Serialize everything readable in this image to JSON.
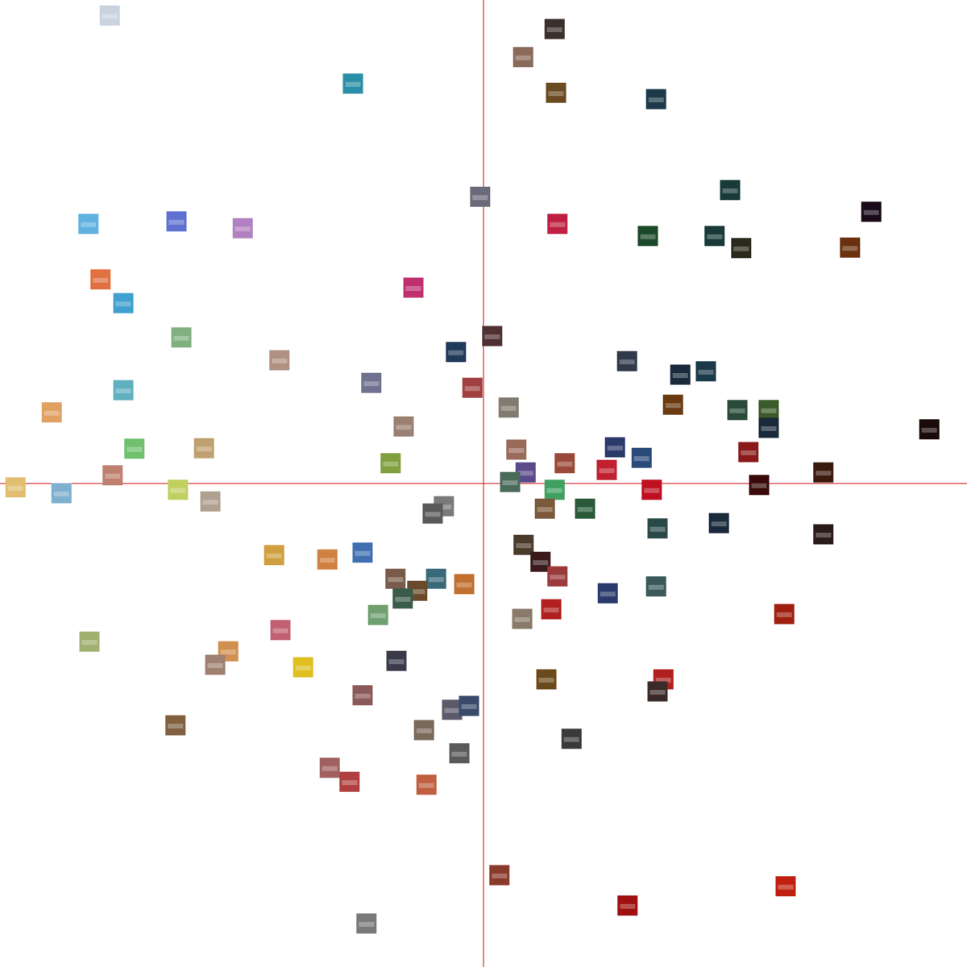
{
  "chart_data": {
    "type": "scatter",
    "title": "",
    "xlabel": "",
    "ylabel": "",
    "xlim": [
      -1,
      1
    ],
    "ylim": [
      -1,
      1
    ],
    "grid": false,
    "axis_color": "#cc0000",
    "marker": "image-thumbnail",
    "points": [
      {
        "x": -0.773,
        "y": 0.968,
        "color": "#c9d3e0"
      },
      {
        "x": 0.147,
        "y": 0.94,
        "color": "#3a2f2a"
      },
      {
        "x": -0.27,
        "y": 0.827,
        "color": "#2a8fa6"
      },
      {
        "x": 0.082,
        "y": 0.882,
        "color": "#8a6a5a"
      },
      {
        "x": 0.15,
        "y": 0.808,
        "color": "#6a4a20"
      },
      {
        "x": 0.357,
        "y": 0.795,
        "color": "#1e3a4a"
      },
      {
        "x": -0.007,
        "y": 0.593,
        "color": "#6a6a7a"
      },
      {
        "x": 0.51,
        "y": 0.607,
        "color": "#1a3a3a"
      },
      {
        "x": 0.802,
        "y": 0.562,
        "color": "#1a0a1a"
      },
      {
        "x": 0.153,
        "y": 0.537,
        "color": "#c02040"
      },
      {
        "x": 0.34,
        "y": 0.512,
        "color": "#1a4a2a"
      },
      {
        "x": 0.478,
        "y": 0.512,
        "color": "#1a3a3a"
      },
      {
        "x": 0.533,
        "y": 0.487,
        "color": "#2a2a1a"
      },
      {
        "x": 0.758,
        "y": 0.488,
        "color": "#6a3010"
      },
      {
        "x": -0.817,
        "y": 0.537,
        "color": "#60b0e0"
      },
      {
        "x": -0.635,
        "y": 0.542,
        "color": "#6070d0"
      },
      {
        "x": -0.498,
        "y": 0.528,
        "color": "#b080c0"
      },
      {
        "x": -0.792,
        "y": 0.422,
        "color": "#e07040"
      },
      {
        "x": -0.745,
        "y": 0.373,
        "color": "#40a0d0"
      },
      {
        "x": -0.145,
        "y": 0.405,
        "color": "#c03070"
      },
      {
        "x": -0.625,
        "y": 0.302,
        "color": "#80b080"
      },
      {
        "x": -0.422,
        "y": 0.255,
        "color": "#b09080"
      },
      {
        "x": -0.232,
        "y": 0.208,
        "color": "#707090"
      },
      {
        "x": -0.057,
        "y": 0.272,
        "color": "#203a5a"
      },
      {
        "x": 0.018,
        "y": 0.305,
        "color": "#503030"
      },
      {
        "x": 0.297,
        "y": 0.253,
        "color": "#303a4a"
      },
      {
        "x": 0.407,
        "y": 0.225,
        "color": "#1a2a3a"
      },
      {
        "x": 0.46,
        "y": 0.232,
        "color": "#1a3a4a"
      },
      {
        "x": -0.745,
        "y": 0.193,
        "color": "#60b0c0"
      },
      {
        "x": -0.023,
        "y": 0.198,
        "color": "#a04040"
      },
      {
        "x": -0.893,
        "y": 0.147,
        "color": "#e0a060"
      },
      {
        "x": 0.052,
        "y": 0.157,
        "color": "#807a70"
      },
      {
        "x": 0.392,
        "y": 0.163,
        "color": "#6a3a10"
      },
      {
        "x": 0.525,
        "y": 0.152,
        "color": "#2a4a3a"
      },
      {
        "x": 0.59,
        "y": 0.152,
        "color": "#3a5a2a"
      },
      {
        "x": 0.59,
        "y": 0.115,
        "color": "#1a2a3a"
      },
      {
        "x": 0.922,
        "y": 0.112,
        "color": "#1a0a0a"
      },
      {
        "x": -0.165,
        "y": 0.118,
        "color": "#9a8070"
      },
      {
        "x": -0.722,
        "y": 0.072,
        "color": "#70c070"
      },
      {
        "x": -0.578,
        "y": 0.073,
        "color": "#c0a070"
      },
      {
        "x": 0.068,
        "y": 0.07,
        "color": "#9a6a5a"
      },
      {
        "x": 0.272,
        "y": 0.075,
        "color": "#2a3a6a"
      },
      {
        "x": 0.327,
        "y": 0.053,
        "color": "#2a4a7a"
      },
      {
        "x": 0.548,
        "y": 0.065,
        "color": "#8a1a1a"
      },
      {
        "x": -0.192,
        "y": 0.042,
        "color": "#80a040"
      },
      {
        "x": 0.168,
        "y": 0.042,
        "color": "#9a4a3a"
      },
      {
        "x": 0.255,
        "y": 0.028,
        "color": "#c02030"
      },
      {
        "x": 0.703,
        "y": 0.023,
        "color": "#3a1a0a"
      },
      {
        "x": -0.767,
        "y": 0.017,
        "color": "#c08070"
      },
      {
        "x": 0.087,
        "y": 0.023,
        "color": "#5a4a8a"
      },
      {
        "x": 0.055,
        "y": 0.003,
        "color": "#4a6a5a"
      },
      {
        "x": -0.968,
        "y": -0.008,
        "color": "#e0c070"
      },
      {
        "x": -0.873,
        "y": -0.02,
        "color": "#80b0d0"
      },
      {
        "x": -0.632,
        "y": -0.013,
        "color": "#c0d060"
      },
      {
        "x": -0.565,
        "y": -0.037,
        "color": "#b0a090"
      },
      {
        "x": 0.147,
        "y": -0.013,
        "color": "#40a060"
      },
      {
        "x": 0.348,
        "y": -0.013,
        "color": "#c01020"
      },
      {
        "x": 0.57,
        "y": -0.003,
        "color": "#3a0a0a"
      },
      {
        "x": -0.082,
        "y": -0.047,
        "color": "#7a7a7a"
      },
      {
        "x": -0.105,
        "y": -0.062,
        "color": "#5a5a5a"
      },
      {
        "x": 0.127,
        "y": -0.052,
        "color": "#7a5a3a"
      },
      {
        "x": 0.21,
        "y": -0.052,
        "color": "#2a5a3a"
      },
      {
        "x": 0.36,
        "y": -0.093,
        "color": "#2a4a4a"
      },
      {
        "x": 0.487,
        "y": -0.082,
        "color": "#1a2a3a"
      },
      {
        "x": 0.703,
        "y": -0.105,
        "color": "#2a1a1a"
      },
      {
        "x": -0.433,
        "y": -0.148,
        "color": "#d0a040"
      },
      {
        "x": -0.323,
        "y": -0.157,
        "color": "#d08040"
      },
      {
        "x": -0.25,
        "y": -0.143,
        "color": "#4070b0"
      },
      {
        "x": 0.083,
        "y": -0.127,
        "color": "#4a3a2a"
      },
      {
        "x": 0.118,
        "y": -0.162,
        "color": "#3a1a1a"
      },
      {
        "x": 0.153,
        "y": -0.192,
        "color": "#9a3a3a"
      },
      {
        "x": -0.182,
        "y": -0.197,
        "color": "#7a5a4a"
      },
      {
        "x": -0.098,
        "y": -0.197,
        "color": "#3a6a7a"
      },
      {
        "x": -0.137,
        "y": -0.222,
        "color": "#6a4a2a"
      },
      {
        "x": -0.04,
        "y": -0.208,
        "color": "#c07030"
      },
      {
        "x": 0.257,
        "y": -0.227,
        "color": "#2a3a6a"
      },
      {
        "x": 0.357,
        "y": -0.213,
        "color": "#3a5a5a"
      },
      {
        "x": -0.167,
        "y": -0.238,
        "color": "#3a5a4a"
      },
      {
        "x": -0.218,
        "y": -0.272,
        "color": "#70a070"
      },
      {
        "x": 0.14,
        "y": -0.26,
        "color": "#b02020"
      },
      {
        "x": 0.08,
        "y": -0.28,
        "color": "#8a7a6a"
      },
      {
        "x": 0.622,
        "y": -0.27,
        "color": "#a02010"
      },
      {
        "x": -0.42,
        "y": -0.303,
        "color": "#c06070"
      },
      {
        "x": -0.815,
        "y": -0.327,
        "color": "#a0b070"
      },
      {
        "x": -0.528,
        "y": -0.347,
        "color": "#d09050"
      },
      {
        "x": -0.555,
        "y": -0.375,
        "color": "#a08070"
      },
      {
        "x": -0.373,
        "y": -0.38,
        "color": "#e0c020"
      },
      {
        "x": -0.18,
        "y": -0.367,
        "color": "#3a3a4a"
      },
      {
        "x": 0.13,
        "y": -0.405,
        "color": "#6a4a1a"
      },
      {
        "x": 0.372,
        "y": -0.405,
        "color": "#b02020"
      },
      {
        "x": 0.36,
        "y": -0.43,
        "color": "#3a2a2a"
      },
      {
        "x": -0.25,
        "y": -0.438,
        "color": "#8a5a5a"
      },
      {
        "x": -0.065,
        "y": -0.468,
        "color": "#5a5a6a"
      },
      {
        "x": -0.03,
        "y": -0.46,
        "color": "#3a4a6a"
      },
      {
        "x": -0.637,
        "y": -0.5,
        "color": "#806040"
      },
      {
        "x": -0.123,
        "y": -0.51,
        "color": "#7a6a5a"
      },
      {
        "x": 0.182,
        "y": -0.528,
        "color": "#3a3a3a"
      },
      {
        "x": -0.05,
        "y": -0.558,
        "color": "#5a5a5a"
      },
      {
        "x": -0.318,
        "y": -0.588,
        "color": "#a06060"
      },
      {
        "x": -0.277,
        "y": -0.617,
        "color": "#b04040"
      },
      {
        "x": -0.118,
        "y": -0.623,
        "color": "#c06040"
      },
      {
        "x": 0.033,
        "y": -0.81,
        "color": "#8a3a2a"
      },
      {
        "x": 0.625,
        "y": -0.833,
        "color": "#c02010"
      },
      {
        "x": 0.298,
        "y": -0.873,
        "color": "#a01010"
      },
      {
        "x": -0.242,
        "y": -0.91,
        "color": "#7a7a7a"
      }
    ]
  }
}
